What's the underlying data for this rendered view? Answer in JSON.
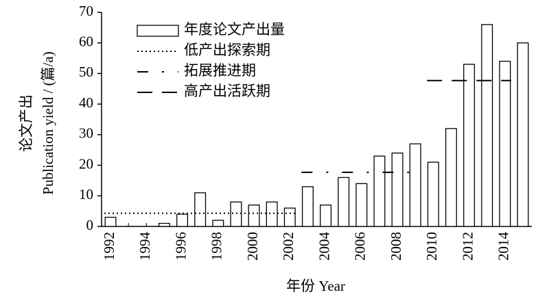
{
  "chart_data": {
    "type": "bar",
    "ylabel": [
      "论文产出",
      "Publication yield / (篇/a)"
    ],
    "xlabel": "年份  Year",
    "categories": [
      "1992",
      null,
      "1994",
      null,
      "1996",
      null,
      "1998",
      null,
      "2000",
      null,
      "2002",
      null,
      "2004",
      null,
      "2006",
      null,
      "2008",
      null,
      "2010",
      null,
      "2012",
      null,
      "2014",
      null
    ],
    "ylim": [
      0,
      70
    ],
    "yticks": [
      0,
      10,
      20,
      30,
      40,
      50,
      60,
      70
    ],
    "series": [
      {
        "name": "年度论文产出量",
        "type": "bar",
        "color": "#000000",
        "values": [
          3,
          0,
          0,
          1,
          4,
          11,
          2,
          8,
          7,
          8,
          6,
          13,
          7,
          16,
          14,
          23,
          24,
          27,
          21,
          32,
          53,
          66,
          54,
          60
        ]
      },
      {
        "name": "低产出探索期",
        "type": "line",
        "dash": "dotted",
        "color": "#000000",
        "values": [
          4.3,
          4.3,
          4.3,
          4.3,
          4.3,
          4.3,
          4.3,
          4.3,
          4.3,
          4.3,
          4.3,
          null,
          null,
          null,
          null,
          null,
          null,
          null,
          null,
          null,
          null,
          null,
          null,
          null
        ]
      },
      {
        "name": "拓展推进期",
        "type": "line",
        "dash": "dash-dot",
        "color": "#000000",
        "values": [
          null,
          null,
          null,
          null,
          null,
          null,
          null,
          null,
          null,
          null,
          null,
          17.7,
          17.7,
          17.7,
          17.7,
          17.7,
          17.7,
          17.7,
          null,
          null,
          null,
          null,
          null,
          null
        ]
      },
      {
        "name": "高产出活跃期",
        "type": "line",
        "dash": "dashed",
        "color": "#000000",
        "values": [
          null,
          null,
          null,
          null,
          null,
          null,
          null,
          null,
          null,
          null,
          null,
          null,
          null,
          null,
          null,
          null,
          null,
          null,
          47.7,
          47.7,
          47.7,
          47.7,
          47.7,
          null
        ]
      }
    ]
  }
}
